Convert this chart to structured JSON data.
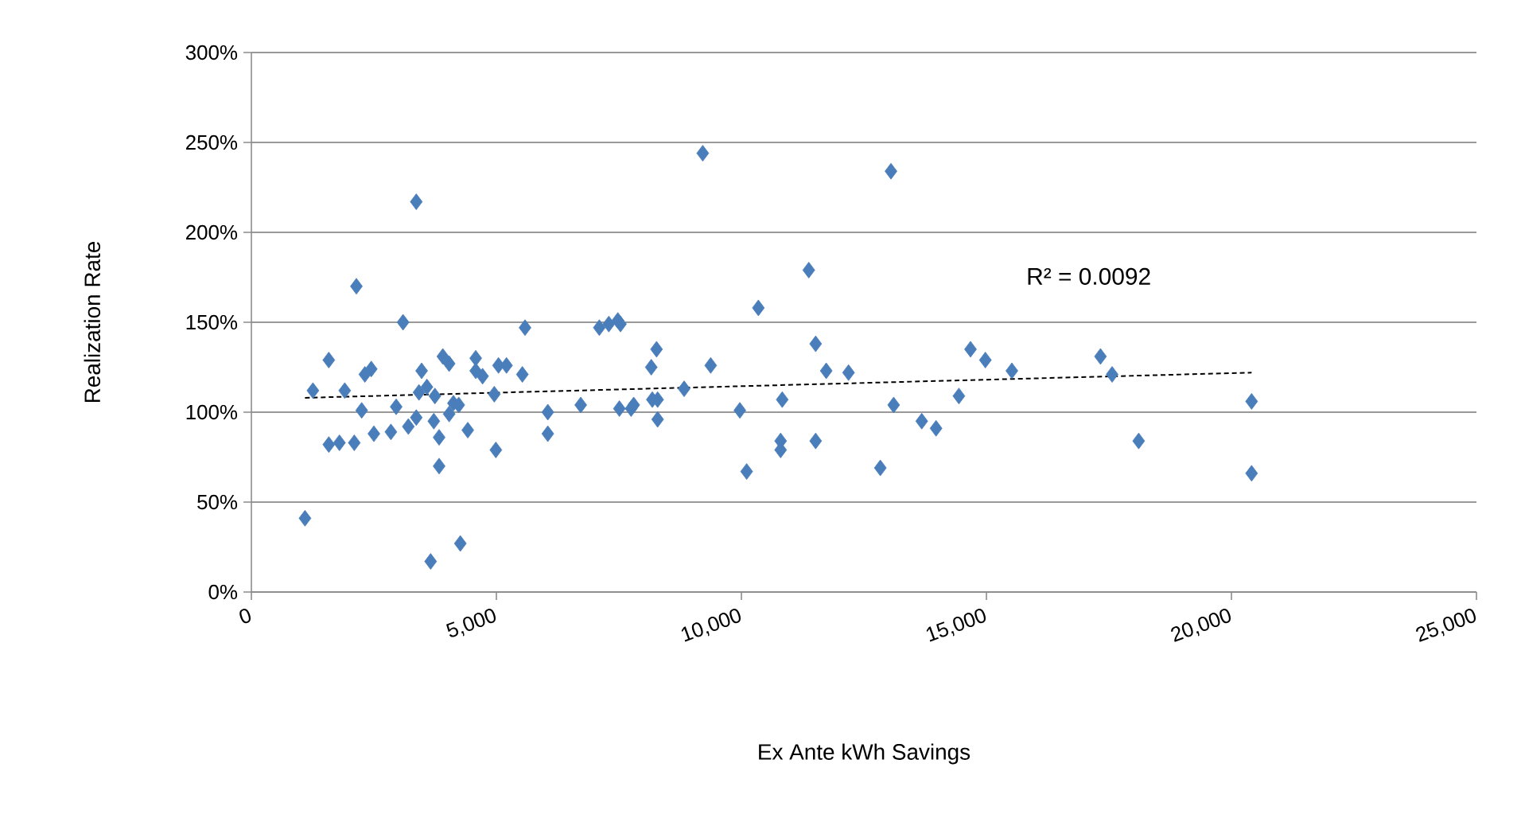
{
  "chart_data": {
    "type": "scatter",
    "xlabel": "Ex Ante kWh Savings",
    "ylabel": "Realization Rate",
    "xlim": [
      0,
      25000
    ],
    "ylim": [
      0,
      300
    ],
    "xticks": [
      0,
      {
        "value": 5000,
        "label": "5,000"
      },
      {
        "value": 10000,
        "label": "10,000"
      },
      {
        "value": 15000,
        "label": "15,000"
      },
      {
        "value": 20000,
        "label": "20,000"
      },
      {
        "value": 25000,
        "label": "25,000"
      }
    ],
    "yticks": [
      {
        "value": 0,
        "label": "0%"
      },
      {
        "value": 50,
        "label": "50%"
      },
      {
        "value": 100,
        "label": "100%"
      },
      {
        "value": 150,
        "label": "150%"
      },
      {
        "value": 200,
        "label": "200%"
      },
      {
        "value": 250,
        "label": "250%"
      },
      {
        "value": 300,
        "label": "300%"
      }
    ],
    "grid": "y",
    "marker": "diamond",
    "annotations": [
      "R² = 0.0092"
    ],
    "series": [
      {
        "type": "scatter",
        "color": "#4a7ebb",
        "x": [
          1094,
          1256,
          1580,
          1580,
          1797,
          1905,
          2100,
          2143,
          2251,
          2316,
          2446,
          2500,
          2847,
          2955,
          3095,
          3203,
          3365,
          3365,
          3420,
          3474,
          3582,
          3658,
          3723,
          3745,
          3831,
          3831,
          3907,
          4036,
          4036,
          4123,
          4232,
          4264,
          4416,
          4578,
          4578,
          4718,
          4957,
          4989,
          5043,
          5206,
          5530,
          5584,
          6049,
          6049,
          6721,
          7100,
          7294,
          7478,
          7532,
          7510,
          7749,
          7802,
          8160,
          8268,
          8182,
          8290,
          8290,
          8831,
          9211,
          9373,
          9968,
          10107,
          10346,
          10833,
          10800,
          10800,
          11375,
          11515,
          11515,
          11731,
          12186,
          12835,
          13052,
          13107,
          13680,
          13972,
          14438,
          14675,
          14978,
          15519,
          17327,
          17565,
          18107,
          20411,
          20411
        ],
        "values": [
          41,
          112,
          129,
          82,
          83,
          112,
          83,
          170,
          101,
          121,
          124,
          88,
          89,
          103,
          150,
          92,
          217,
          97,
          111,
          123,
          114,
          17,
          95,
          109,
          86,
          70,
          131,
          127,
          99,
          105,
          104,
          27,
          90,
          130,
          123,
          120,
          110,
          79,
          126,
          126,
          121,
          147,
          100,
          88,
          104,
          147,
          149,
          151,
          149,
          102,
          102,
          104,
          125,
          135,
          107,
          107,
          96,
          113,
          244,
          126,
          101,
          67,
          158,
          107,
          84,
          79,
          179,
          138,
          84,
          123,
          122,
          69,
          234,
          104,
          95,
          91,
          109,
          135,
          129,
          123,
          131,
          121,
          84,
          106,
          66
        ]
      },
      {
        "type": "line",
        "color": "#000000",
        "line_style": "dashed",
        "marker": "none",
        "x": [
          1094,
          20411
        ],
        "values": [
          108,
          122
        ]
      }
    ]
  }
}
